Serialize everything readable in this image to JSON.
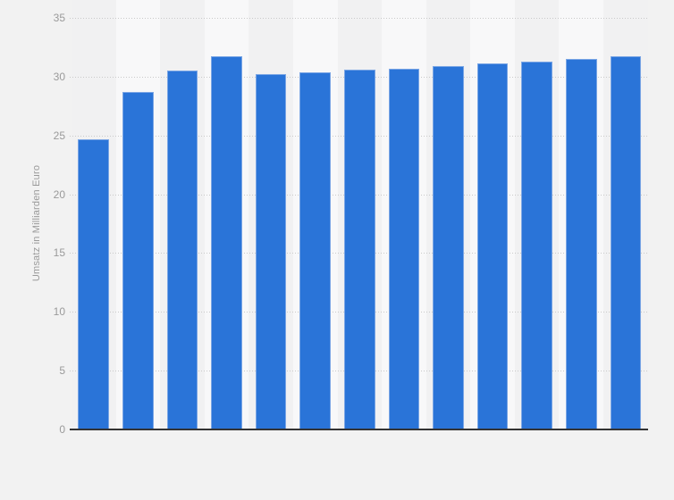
{
  "chart_data": {
    "type": "bar",
    "title": "",
    "xlabel": "",
    "ylabel": "Umsatz in Milliarden Euro",
    "ylim": [
      0,
      35
    ],
    "y_ticks": [
      0,
      5,
      10,
      15,
      20,
      25,
      30,
      35
    ],
    "x_tick_labels_visible": false,
    "bar_count": 13,
    "values": [
      24.7,
      28.7,
      30.5,
      31.7,
      30.2,
      30.4,
      30.6,
      30.7,
      30.9,
      31.1,
      31.3,
      31.5,
      31.7
    ],
    "grid": "horizontal-dotted",
    "legend": "none",
    "colors": {
      "page_background": "#f2f2f2",
      "bar_fill": "#2a74d8",
      "bar_border": "#7ba6e5",
      "band_light": "#f8f8f9",
      "band_dark": "#f1f1f2",
      "gridline": "#c9c9c9",
      "axis_line": "#333333",
      "axis_text": "#9a9a9a"
    }
  }
}
